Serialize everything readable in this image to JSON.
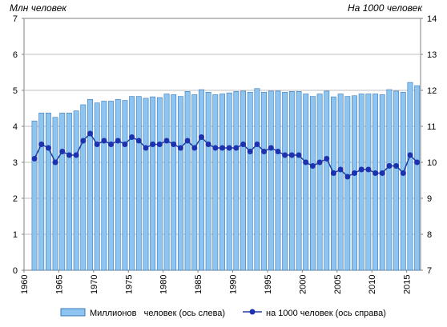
{
  "chart_data": {
    "type": "bar+line",
    "left_axis_title": "Млн  человек",
    "right_axis_title": "На 1000 человек",
    "left_ylim": [
      0,
      7
    ],
    "right_ylim": [
      7,
      14
    ],
    "left_ticks": [
      "0",
      "1",
      "2",
      "3",
      "4",
      "5",
      "6",
      "7"
    ],
    "right_ticks": [
      "7",
      "8",
      "9",
      "10",
      "11",
      "12",
      "13",
      "14"
    ],
    "x_tick_labels": [
      "1960",
      "1965",
      "1970",
      "1975",
      "1980",
      "1985",
      "1990",
      "1995",
      "2000",
      "2005",
      "2010",
      "2015"
    ],
    "x_tick_years": [
      1960,
      1965,
      1970,
      1975,
      1980,
      1985,
      1990,
      1995,
      2000,
      2005,
      2010,
      2015
    ],
    "grid": "horizontal",
    "legend_position": "bottom",
    "colors": {
      "bar_fill": "#8ec5f0",
      "bar_stroke": "#3a79b8",
      "line": "#1f3f9e",
      "marker": "#1c32b0",
      "grid": "#bfbfbf",
      "plot_bg": "#ffffff"
    },
    "years": [
      1961,
      1962,
      1963,
      1964,
      1965,
      1966,
      1967,
      1968,
      1969,
      1970,
      1971,
      1972,
      1973,
      1974,
      1975,
      1976,
      1977,
      1978,
      1979,
      1980,
      1981,
      1982,
      1983,
      1984,
      1985,
      1986,
      1987,
      1988,
      1989,
      1990,
      1991,
      1992,
      1993,
      1994,
      1995,
      1996,
      1997,
      1998,
      1999,
      2000,
      2001,
      2002,
      2003,
      2004,
      2005,
      2006,
      2007,
      2008,
      2009,
      2010,
      2011,
      2012,
      2013,
      2014,
      2015,
      2016
    ],
    "series": [
      {
        "name": "Миллионов   человек (ось слева)",
        "axis": "left",
        "kind": "bar",
        "values": [
          4.15,
          4.37,
          4.37,
          4.25,
          4.37,
          4.37,
          4.43,
          4.6,
          4.75,
          4.65,
          4.7,
          4.7,
          4.75,
          4.72,
          4.83,
          4.83,
          4.78,
          4.82,
          4.8,
          4.9,
          4.88,
          4.83,
          4.97,
          4.88,
          5.02,
          4.95,
          4.88,
          4.9,
          4.93,
          4.97,
          4.98,
          4.95,
          5.05,
          4.95,
          4.98,
          4.98,
          4.95,
          4.97,
          4.97,
          4.9,
          4.83,
          4.9,
          4.98,
          4.82,
          4.9,
          4.83,
          4.85,
          4.9,
          4.9,
          4.9,
          4.88,
          5.02,
          4.98,
          4.95,
          5.22,
          5.13
        ]
      },
      {
        "name": "на 1000 человек (ось справа)",
        "axis": "right",
        "kind": "line",
        "values": [
          10.1,
          10.5,
          10.4,
          10.0,
          10.3,
          10.2,
          10.2,
          10.6,
          10.8,
          10.5,
          10.6,
          10.5,
          10.6,
          10.5,
          10.7,
          10.6,
          10.4,
          10.5,
          10.5,
          10.6,
          10.5,
          10.4,
          10.6,
          10.4,
          10.7,
          10.5,
          10.4,
          10.4,
          10.4,
          10.4,
          10.5,
          10.3,
          10.5,
          10.3,
          10.4,
          10.3,
          10.2,
          10.2,
          10.2,
          10.0,
          9.9,
          10.0,
          10.1,
          9.7,
          9.8,
          9.6,
          9.7,
          9.8,
          9.8,
          9.7,
          9.7,
          9.9,
          9.9,
          9.7,
          10.2,
          10.0
        ]
      }
    ]
  }
}
